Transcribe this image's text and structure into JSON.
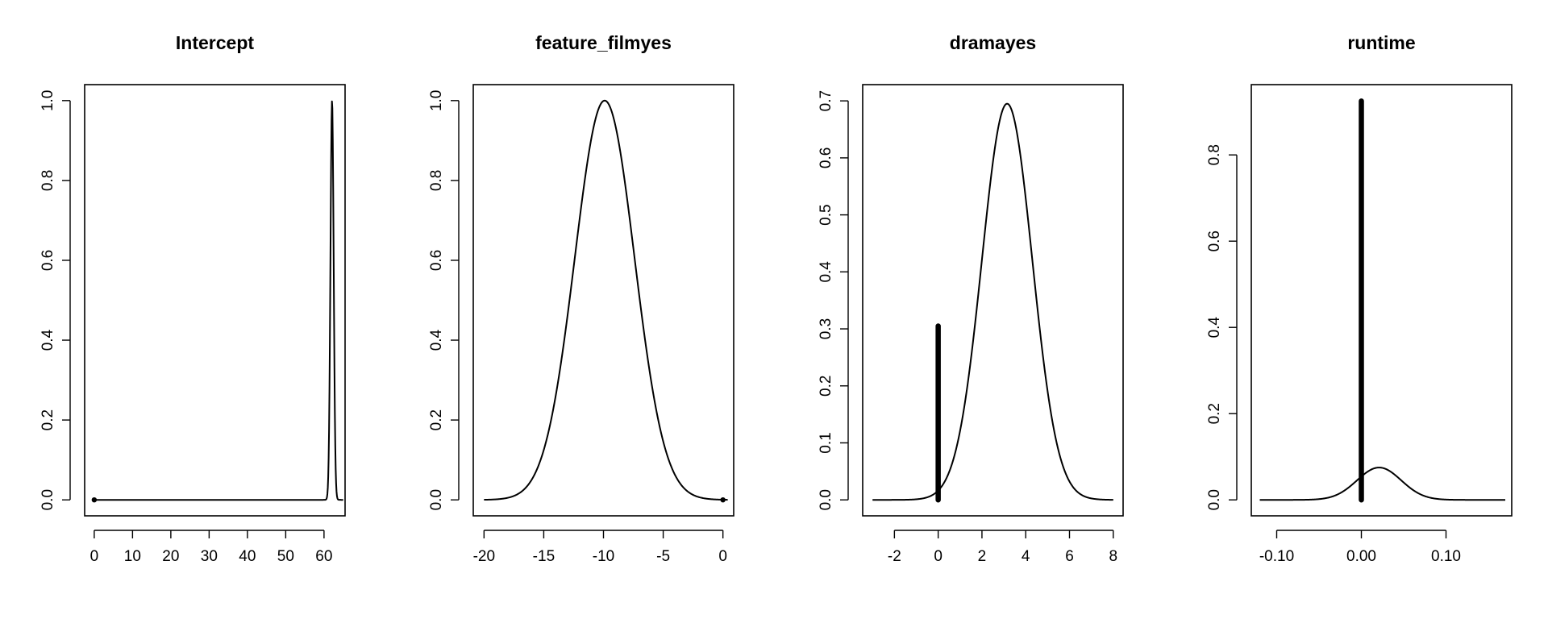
{
  "chart_data": [
    {
      "type": "line",
      "title": "Intercept",
      "xlim": [
        -2.5,
        65.5
      ],
      "ylim": [
        -0.04,
        1.04
      ],
      "xticks": [
        0,
        10,
        20,
        30,
        40,
        50,
        60
      ],
      "yticks": [
        0.0,
        0.2,
        0.4,
        0.6,
        0.8,
        1.0
      ],
      "xtick_labels": [
        "0",
        "10",
        "20",
        "30",
        "40",
        "50",
        "60"
      ],
      "ytick_labels": [
        "0.0",
        "0.2",
        "0.4",
        "0.6",
        "0.8",
        "1.0"
      ],
      "density": {
        "kind": "gaussian",
        "mean": 62.1,
        "sd": 0.42,
        "peak": 1.0,
        "x_range": [
          0,
          65
        ]
      },
      "spike": null,
      "point": {
        "x": 0,
        "y": 0
      },
      "grid": false
    },
    {
      "type": "line",
      "title": "feature_filmyes",
      "xlim": [
        -20.9,
        0.9
      ],
      "ylim": [
        -0.04,
        1.04
      ],
      "xticks": [
        -20,
        -15,
        -10,
        -5,
        0
      ],
      "yticks": [
        0.0,
        0.2,
        0.4,
        0.6,
        0.8,
        1.0
      ],
      "xtick_labels": [
        "-20",
        "-15",
        "-10",
        "-5",
        "0"
      ],
      "ytick_labels": [
        "0.0",
        "0.2",
        "0.4",
        "0.6",
        "0.8",
        "1.0"
      ],
      "density": {
        "kind": "gaussian",
        "mean": -9.9,
        "sd": 2.5,
        "peak": 1.0,
        "x_range": [
          -20,
          0.4
        ]
      },
      "spike": null,
      "point": {
        "x": 0,
        "y": 0
      },
      "grid": false
    },
    {
      "type": "line",
      "title": "dramayes",
      "xlim": [
        -3.45,
        8.45
      ],
      "ylim": [
        -0.028,
        0.7285
      ],
      "xticks": [
        -2,
        0,
        2,
        4,
        6,
        8
      ],
      "yticks": [
        0.0,
        0.1,
        0.2,
        0.3,
        0.4,
        0.5,
        0.6,
        0.7
      ],
      "xtick_labels": [
        "-2",
        "0",
        "2",
        "4",
        "6",
        "8"
      ],
      "ytick_labels": [
        "0.0",
        "0.1",
        "0.2",
        "0.3",
        "0.4",
        "0.5",
        "0.6",
        "0.7"
      ],
      "density": {
        "kind": "gaussian",
        "mean": 3.15,
        "sd": 1.15,
        "peak": 0.695,
        "x_range": [
          -3,
          8
        ]
      },
      "spike": {
        "x": 0,
        "height": 0.305
      },
      "point": null,
      "grid": false
    },
    {
      "type": "line",
      "title": "runtime",
      "xlim": [
        -0.13,
        0.1776
      ],
      "ylim": [
        -0.037,
        0.963
      ],
      "xticks": [
        -0.1,
        0.0,
        0.1
      ],
      "yticks": [
        0.0,
        0.2,
        0.4,
        0.6,
        0.8
      ],
      "xtick_labels": [
        "-0.10",
        "0.00",
        "0.10"
      ],
      "ytick_labels": [
        "0.0",
        "0.2",
        "0.4",
        "0.6",
        "0.8"
      ],
      "density": {
        "kind": "gaussian",
        "mean": 0.021,
        "sd": 0.026,
        "peak": 0.075,
        "x_range": [
          -0.12,
          0.17
        ]
      },
      "spike": {
        "x": 0,
        "height": 0.925
      },
      "point": null,
      "grid": false
    }
  ]
}
